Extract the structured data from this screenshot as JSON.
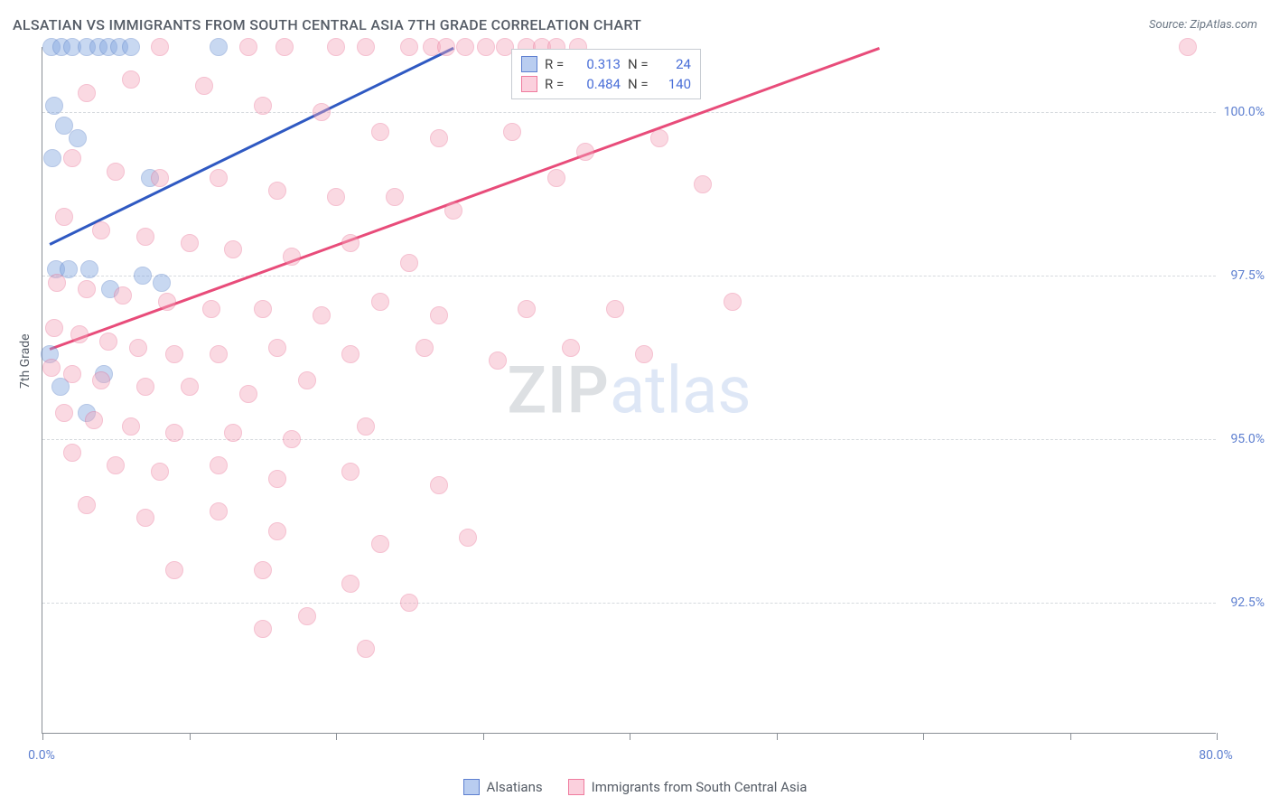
{
  "header": {
    "title": "ALSATIAN VS IMMIGRANTS FROM SOUTH CENTRAL ASIA 7TH GRADE CORRELATION CHART",
    "source": "Source: ZipAtlas.com"
  },
  "chart": {
    "type": "scatter",
    "y_axis_label": "7th Grade",
    "xlim": [
      0,
      80
    ],
    "ylim": [
      90.5,
      101.0
    ],
    "x_ticks": [
      0,
      10,
      20,
      30,
      40,
      50,
      60,
      70,
      80
    ],
    "x_tick_labels": {
      "0": "0.0%",
      "80": "80.0%"
    },
    "y_ticks": [
      92.5,
      95.0,
      97.5,
      100.0
    ],
    "y_tick_labels": [
      "92.5%",
      "95.0%",
      "97.5%",
      "100.0%"
    ],
    "background_color": "#ffffff",
    "grid_color": "#d6dade",
    "axis_color": "#8a8f96",
    "tick_label_color": "#5d7fd0",
    "marker_radius": 10,
    "marker_opacity": 0.42,
    "series": [
      {
        "name": "Alsatians",
        "color_fill": "#7ea3e0",
        "color_stroke": "#4e78c4",
        "swatch_fill": "#b9cdf0",
        "swatch_border": "#5d7fd0",
        "R": "0.313",
        "N": "24",
        "trend": {
          "x1": 0.5,
          "y1": 98.0,
          "x2": 28,
          "y2": 101.0,
          "color": "#2f59c2"
        },
        "points": [
          [
            0.6,
            101.0
          ],
          [
            1.3,
            101.0
          ],
          [
            2.0,
            101.0
          ],
          [
            3.0,
            101.0
          ],
          [
            3.8,
            101.0
          ],
          [
            4.5,
            101.0
          ],
          [
            5.2,
            101.0
          ],
          [
            6.0,
            101.0
          ],
          [
            12.0,
            101.0
          ],
          [
            0.8,
            100.1
          ],
          [
            1.5,
            99.8
          ],
          [
            2.4,
            99.6
          ],
          [
            0.7,
            99.3
          ],
          [
            7.3,
            99.0
          ],
          [
            0.9,
            97.6
          ],
          [
            1.8,
            97.6
          ],
          [
            3.2,
            97.6
          ],
          [
            4.6,
            97.3
          ],
          [
            6.8,
            97.5
          ],
          [
            8.1,
            97.4
          ],
          [
            0.5,
            96.3
          ],
          [
            1.2,
            95.8
          ],
          [
            3.0,
            95.4
          ],
          [
            4.2,
            96.0
          ]
        ]
      },
      {
        "name": "Immigrants from South Central Asia",
        "color_fill": "#f4a6bb",
        "color_stroke": "#e96a90",
        "swatch_fill": "#fbd0dd",
        "swatch_border": "#ef7b9e",
        "R": "0.484",
        "N": "140",
        "trend": {
          "x1": 0.5,
          "y1": 96.4,
          "x2": 57,
          "y2": 101.0,
          "color": "#e84c7a"
        },
        "points": [
          [
            8,
            101.0
          ],
          [
            14,
            101.0
          ],
          [
            16.5,
            101.0
          ],
          [
            20,
            101.0
          ],
          [
            22,
            101.0
          ],
          [
            25,
            101.0
          ],
          [
            26.5,
            101.0
          ],
          [
            27.5,
            101.0
          ],
          [
            28.8,
            101.0
          ],
          [
            30.2,
            101.0
          ],
          [
            31.5,
            101.0
          ],
          [
            33,
            101.0
          ],
          [
            34,
            101.0
          ],
          [
            35,
            101.0
          ],
          [
            36.5,
            101.0
          ],
          [
            78,
            101.0
          ],
          [
            3,
            100.3
          ],
          [
            6,
            100.5
          ],
          [
            11,
            100.4
          ],
          [
            15,
            100.1
          ],
          [
            19,
            100.0
          ],
          [
            23,
            99.7
          ],
          [
            27,
            99.6
          ],
          [
            32,
            99.7
          ],
          [
            37,
            99.4
          ],
          [
            42,
            99.6
          ],
          [
            2,
            99.3
          ],
          [
            5,
            99.1
          ],
          [
            8,
            99.0
          ],
          [
            12,
            99.0
          ],
          [
            16,
            98.8
          ],
          [
            20,
            98.7
          ],
          [
            24,
            98.7
          ],
          [
            28,
            98.5
          ],
          [
            35,
            99.0
          ],
          [
            45,
            98.9
          ],
          [
            1.5,
            98.4
          ],
          [
            4,
            98.2
          ],
          [
            7,
            98.1
          ],
          [
            10,
            98.0
          ],
          [
            13,
            97.9
          ],
          [
            17,
            97.8
          ],
          [
            21,
            98.0
          ],
          [
            25,
            97.7
          ],
          [
            1,
            97.4
          ],
          [
            3,
            97.3
          ],
          [
            5.5,
            97.2
          ],
          [
            8.5,
            97.1
          ],
          [
            11.5,
            97.0
          ],
          [
            15,
            97.0
          ],
          [
            19,
            96.9
          ],
          [
            23,
            97.1
          ],
          [
            27,
            96.9
          ],
          [
            33,
            97.0
          ],
          [
            39,
            97.0
          ],
          [
            47,
            97.1
          ],
          [
            0.8,
            96.7
          ],
          [
            2.5,
            96.6
          ],
          [
            4.5,
            96.5
          ],
          [
            6.5,
            96.4
          ],
          [
            9,
            96.3
          ],
          [
            12,
            96.3
          ],
          [
            16,
            96.4
          ],
          [
            21,
            96.3
          ],
          [
            26,
            96.4
          ],
          [
            31,
            96.2
          ],
          [
            36,
            96.4
          ],
          [
            41,
            96.3
          ],
          [
            0.6,
            96.1
          ],
          [
            2,
            96.0
          ],
          [
            4,
            95.9
          ],
          [
            7,
            95.8
          ],
          [
            10,
            95.8
          ],
          [
            14,
            95.7
          ],
          [
            18,
            95.9
          ],
          [
            1.5,
            95.4
          ],
          [
            3.5,
            95.3
          ],
          [
            6,
            95.2
          ],
          [
            9,
            95.1
          ],
          [
            13,
            95.1
          ],
          [
            17,
            95.0
          ],
          [
            22,
            95.2
          ],
          [
            2,
            94.8
          ],
          [
            5,
            94.6
          ],
          [
            8,
            94.5
          ],
          [
            12,
            94.6
          ],
          [
            16,
            94.4
          ],
          [
            21,
            94.5
          ],
          [
            27,
            94.3
          ],
          [
            3,
            94.0
          ],
          [
            7,
            93.8
          ],
          [
            12,
            93.9
          ],
          [
            16,
            93.6
          ],
          [
            23,
            93.4
          ],
          [
            29,
            93.5
          ],
          [
            9,
            93.0
          ],
          [
            15,
            93.0
          ],
          [
            21,
            92.8
          ],
          [
            18,
            92.3
          ],
          [
            25,
            92.5
          ],
          [
            15,
            92.1
          ],
          [
            22,
            91.8
          ]
        ]
      }
    ],
    "watermark": {
      "part1": "ZIP",
      "part2": "atlas"
    },
    "bottom_legend": [
      {
        "label": "Alsatians"
      },
      {
        "label": "Immigrants from South Central Asia"
      }
    ]
  }
}
